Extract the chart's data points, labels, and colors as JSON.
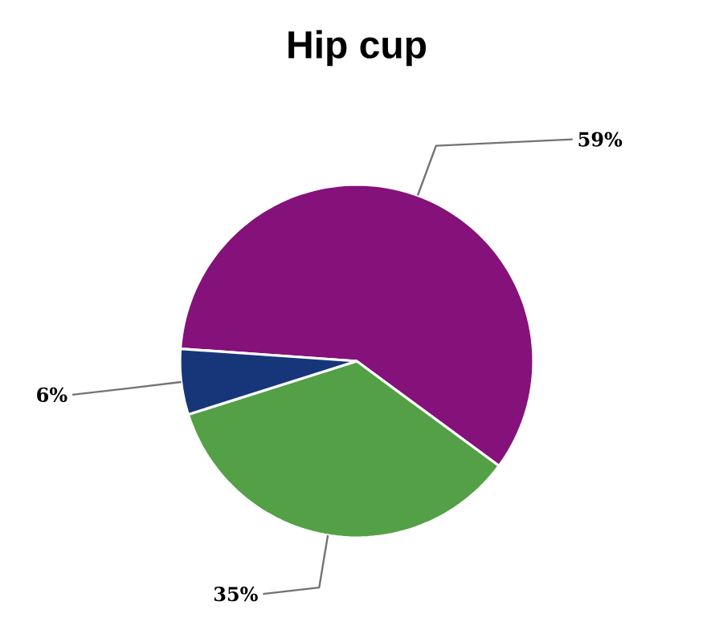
{
  "chart_data": {
    "type": "pie",
    "title": "Hip cup",
    "categories": [
      null,
      null,
      null
    ],
    "values": [
      59,
      35,
      6
    ],
    "colors": [
      "#85117a",
      "#54a046",
      "#17367a"
    ],
    "value_labels": [
      "59%",
      "35%",
      "6%"
    ]
  }
}
